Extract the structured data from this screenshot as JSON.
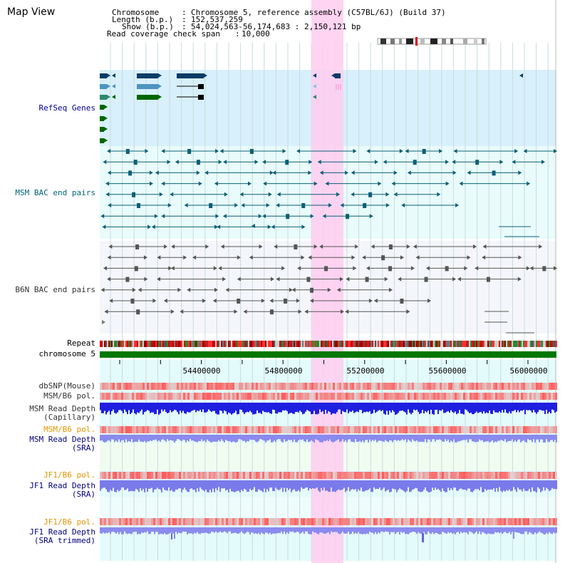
{
  "app": {
    "title": "Map View"
  },
  "header": {
    "chrom_key": "Chromosome",
    "chrom_val": "Chromosome 5, reference assembly (C57BL/6J) (Build 37)",
    "length_key": "Length (b.p.)",
    "length_val": "152,537,259",
    "show_key": "Show (b.p.)",
    "show_val": "54,024,563-56,174,683 : 2,150,121 bp",
    "span_key": "Read coverage check span",
    "span_val": "10,000"
  },
  "tracks": {
    "refseq": "RefSeq Genes",
    "msm_bac": "MSM BAC end pairs",
    "b6n_bac": "B6N BAC end pairs",
    "repeat": "Repeat",
    "chromosome": "chromosome 5",
    "dbsnp": "dbSNP(Mouse)",
    "msm_pol": "MSM/B6 pol.",
    "msm_depth_cap_1": "MSM Read Depth",
    "msm_depth_cap_2": "(Capillary)",
    "msm_pol_sra": "MSM/B6 pol.",
    "msm_depth_sra_1": "MSM Read Depth",
    "msm_depth_sra_2": "(SRA)",
    "jf1_pol": "JF1/B6 pol.",
    "jf1_depth_1": "JF1 Read Depth",
    "jf1_depth_2": "(SRA)",
    "jf1_pol_trim": "JF1/B6 pol.",
    "jf1_trim_1": "JF1 Read Depth",
    "jf1_trim_2": "(SRA trimmed)"
  },
  "axis": {
    "ticks": [
      "54400000",
      "54800000",
      "55200000",
      "55600000",
      "56000000"
    ]
  },
  "colors": {
    "highlight": "#ffccf0",
    "refseq_bg": "#d8f0fb",
    "grid": "#c8dcdc",
    "chromosome": "#007700"
  }
}
